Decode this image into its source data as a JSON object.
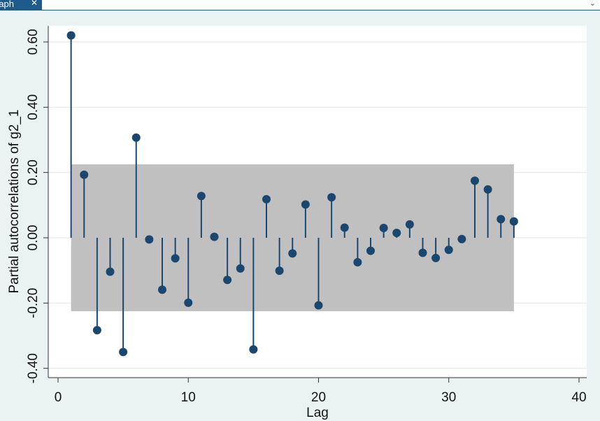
{
  "window": {
    "tab_title": "raph",
    "close_glyph": "✕",
    "chevron_glyph": "⌄"
  },
  "chart_data": {
    "type": "scatter",
    "style": "stem plot with confidence band",
    "xlabel": "Lag",
    "ylabel": "Partial autocorrelations of g2_1",
    "xlim": [
      0,
      40
    ],
    "ylim": [
      -0.44,
      0.65
    ],
    "x_ticks": [
      0,
      10,
      20,
      30,
      40
    ],
    "y_ticks": [
      -0.4,
      -0.2,
      0.0,
      0.2,
      0.4,
      0.6
    ],
    "y_tick_labels": [
      "-0.40",
      "-0.20",
      "0.00",
      "0.20",
      "0.40",
      "0.60"
    ],
    "grid": "horizontal",
    "confidence_band": {
      "x_start": 1,
      "x_end": 35,
      "lower": -0.225,
      "upper": 0.225
    },
    "x": [
      1,
      2,
      3,
      4,
      5,
      6,
      7,
      8,
      9,
      10,
      11,
      12,
      13,
      14,
      15,
      16,
      17,
      18,
      19,
      20,
      21,
      22,
      23,
      24,
      25,
      26,
      27,
      28,
      29,
      30,
      31,
      32,
      33,
      34,
      35
    ],
    "values": [
      0.62,
      0.193,
      -0.283,
      -0.104,
      -0.35,
      0.307,
      -0.005,
      -0.159,
      -0.063,
      -0.199,
      0.128,
      0.003,
      -0.129,
      -0.094,
      -0.342,
      0.118,
      -0.101,
      -0.048,
      0.102,
      -0.207,
      0.124,
      0.031,
      -0.075,
      -0.04,
      0.03,
      0.015,
      0.041,
      -0.046,
      -0.062,
      -0.037,
      -0.004,
      0.175,
      0.148,
      0.057,
      0.05
    ],
    "colors": {
      "marker": "#1a476f",
      "band": "#c0c0c0",
      "plot_bg": "#ffffff",
      "outer_bg": "#eaf2f3",
      "grid": "#e8eef0"
    }
  }
}
